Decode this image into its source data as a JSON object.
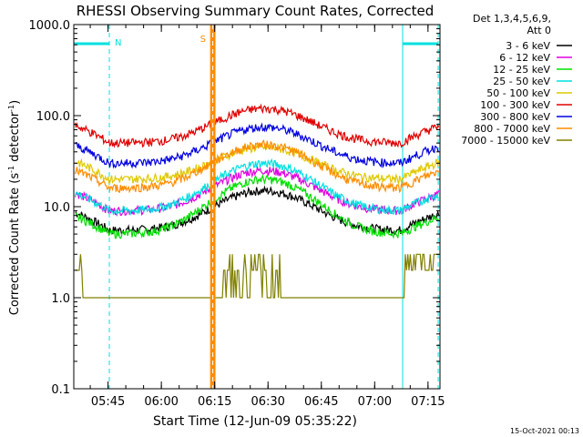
{
  "chart_data": {
    "type": "line",
    "title": "RHESSI Observing Summary Count Rates, Corrected",
    "xlabel": "Start Time (12-Jun-09 05:35:22)",
    "ylabel_main": "Corrected Count Rate (s",
    "ylabel_sup1": "-1",
    "ylabel_mid": " detector",
    "ylabel_sup2": "-1",
    "ylabel_end": ")",
    "y_scale": "log",
    "ylim": [
      0.1,
      1000
    ],
    "y_tick_labels": [
      "1000.0",
      "100.0",
      "10.0",
      "1.0",
      "0.1"
    ],
    "y_tick_values": [
      1000,
      100,
      10,
      1,
      0.1
    ],
    "x_range_minutes": [
      0,
      103
    ],
    "x_tick_labels": [
      "05:45",
      "06:00",
      "06:15",
      "06:30",
      "06:45",
      "07:00",
      "07:15"
    ],
    "x_tick_minutes": [
      9.63,
      24.63,
      39.63,
      54.63,
      69.63,
      84.63,
      99.63
    ],
    "legend_header": [
      "Det 1,3,4,5,6,9,",
      "Att 0"
    ],
    "legend_position": "right",
    "series": [
      {
        "name": "3 - 6 keV",
        "color": "#000000",
        "base": 5.5,
        "peak": 15
      },
      {
        "name": "6 - 12 keV",
        "color": "#e000e0",
        "base": 9,
        "peak": 25
      },
      {
        "name": "12 - 25 keV",
        "color": "#00e000",
        "base": 5,
        "peak": 20
      },
      {
        "name": "25 - 50 keV",
        "color": "#00e0e0",
        "base": 9,
        "peak": 30
      },
      {
        "name": "50 - 100 keV",
        "color": "#e0c800",
        "base": 20,
        "peak": 45
      },
      {
        "name": "100 - 300 keV",
        "color": "#e00000",
        "base": 50,
        "peak": 120
      },
      {
        "name": "300 - 800 keV",
        "color": "#0000e0",
        "base": 30,
        "peak": 75
      },
      {
        "name": "800 - 7000 keV",
        "color": "#ff8c00",
        "base": 16,
        "peak": 48
      },
      {
        "name": "7000 - 15000 keV",
        "color": "#808000",
        "base": 1,
        "peak": 3
      }
    ],
    "annotations": [
      {
        "label": "N",
        "color": "#00e0e0",
        "kind": "night interval",
        "start_minute": 0,
        "end_minute": 10
      },
      {
        "label": "N",
        "color": "#00e0e0",
        "kind": "night interval",
        "start_minute": 92.5,
        "end_minute": 102.5
      },
      {
        "label": "S",
        "color": "#ff8c00",
        "kind": "SAA interval",
        "start_minute": 38.6,
        "end_minute": 39.6
      }
    ]
  },
  "footer": {
    "timestamp": "15-Oct-2021 00:13"
  }
}
